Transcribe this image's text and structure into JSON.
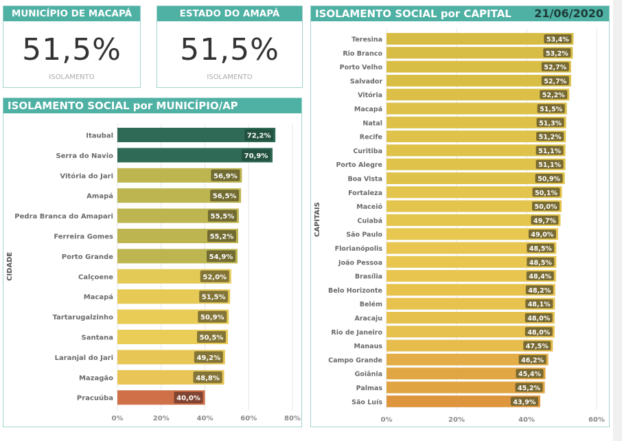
{
  "kpis": [
    {
      "title": "MUNICÍPIO DE MACAPÁ",
      "value": "51,5%",
      "label": "ISOLAMENTO"
    },
    {
      "title": "ESTADO DO AMAPÁ",
      "value": "51,5%",
      "label": "ISOLAMENTO"
    }
  ],
  "municipio_panel": {
    "title": "ISOLAMENTO SOCIAL por MUNICÍPIO/AP",
    "axis_title": "CIDADE"
  },
  "capital_panel": {
    "title": "ISOLAMENTO SOCIAL por CAPITAL",
    "date": "21/06/2020",
    "axis_title": "CAPITAIS"
  },
  "colors": {
    "header": "#4fb0a4",
    "border": "#9fd3cd",
    "dark_green": "#2e6a55",
    "olive": "#bdb650",
    "yellow": "#e8cb55",
    "orange_red": "#cf7048",
    "label_bg": "#6b6530"
  },
  "chart_data": [
    {
      "type": "bar",
      "orientation": "horizontal",
      "title": "ISOLAMENTO SOCIAL por MUNICÍPIO/AP",
      "ylabel": "CIDADE",
      "xlabel": "",
      "categories": [
        "Itaubal",
        "Serra do Navio",
        "Vitória do Jari",
        "Amapá",
        "Pedra Branca do Amapari",
        "Ferreira Gomes",
        "Porto Grande",
        "Calçoene",
        "Macapá",
        "Tartarugalzinho",
        "Santana",
        "Laranjal do Jari",
        "Mazagão",
        "Pracuúba"
      ],
      "values": [
        72.2,
        70.9,
        56.9,
        56.5,
        55.5,
        55.2,
        54.9,
        52.0,
        51.5,
        50.9,
        50.5,
        49.2,
        48.8,
        40.0
      ],
      "labels": [
        "72,2%",
        "70,9%",
        "56,9%",
        "56,5%",
        "55,5%",
        "55,2%",
        "54,9%",
        "52,0%",
        "51,5%",
        "50,9%",
        "50,5%",
        "49,2%",
        "48,8%",
        "40,0%"
      ],
      "bar_colors": [
        "#2e6a55",
        "#2e6a55",
        "#bdb650",
        "#bdb650",
        "#bdb650",
        "#bdb650",
        "#bdb650",
        "#e3c955",
        "#e6ca55",
        "#e8cc56",
        "#e9cd57",
        "#e8c656",
        "#e8c556",
        "#cf7048"
      ],
      "label_colors": [
        "#24503f",
        "#24503f",
        "#6b6530",
        "#6b6530",
        "#6b6530",
        "#6b6530",
        "#6b6530",
        "#7a6c34",
        "#7a6c34",
        "#7a6c34",
        "#7a6c34",
        "#7a6c34",
        "#7a6c34",
        "#7a4030"
      ],
      "xlim": [
        0,
        80
      ],
      "xticks": [
        "0%",
        "20%",
        "40%",
        "60%",
        "80%"
      ],
      "grid": true
    },
    {
      "type": "bar",
      "orientation": "horizontal",
      "title": "ISOLAMENTO SOCIAL por CAPITAL",
      "ylabel": "CAPITAIS",
      "xlabel": "",
      "categories": [
        "Teresina",
        "Rio Branco",
        "Porto Velho",
        "Salvador",
        "Vitória",
        "Macapá",
        "Natal",
        "Recife",
        "Curitiba",
        "Porto Alegre",
        "Boa Vista",
        "Fortaleza",
        "Maceió",
        "Cuiabá",
        "São Paulo",
        "Florianópolis",
        "João Pessoa",
        "Brasília",
        "Belo Horizonte",
        "Belém",
        "Aracaju",
        "Rio de Janeiro",
        "Manaus",
        "Campo Grande",
        "Goiânia",
        "Palmas",
        "São Luís"
      ],
      "values": [
        53.4,
        53.2,
        52.7,
        52.7,
        52.2,
        51.5,
        51.3,
        51.2,
        51.1,
        51.1,
        50.9,
        50.1,
        50.0,
        49.7,
        49.0,
        48.5,
        48.5,
        48.4,
        48.2,
        48.1,
        48.0,
        48.0,
        47.5,
        46.2,
        45.4,
        45.2,
        43.9
      ],
      "labels": [
        "53,4%",
        "53,2%",
        "52,7%",
        "52,7%",
        "52,2%",
        "51,5%",
        "51,3%",
        "51,2%",
        "51,1%",
        "51,1%",
        "50,9%",
        "50,1%",
        "50,0%",
        "49,7%",
        "49,0%",
        "48,5%",
        "48,5%",
        "48,4%",
        "48,2%",
        "48,1%",
        "48,0%",
        "48,0%",
        "47,5%",
        "46,2%",
        "45,4%",
        "45,2%",
        "43,9%"
      ],
      "xlim": [
        0,
        60
      ],
      "xticks": [
        "0%",
        "20%",
        "40%",
        "60%"
      ],
      "grid": true
    }
  ]
}
